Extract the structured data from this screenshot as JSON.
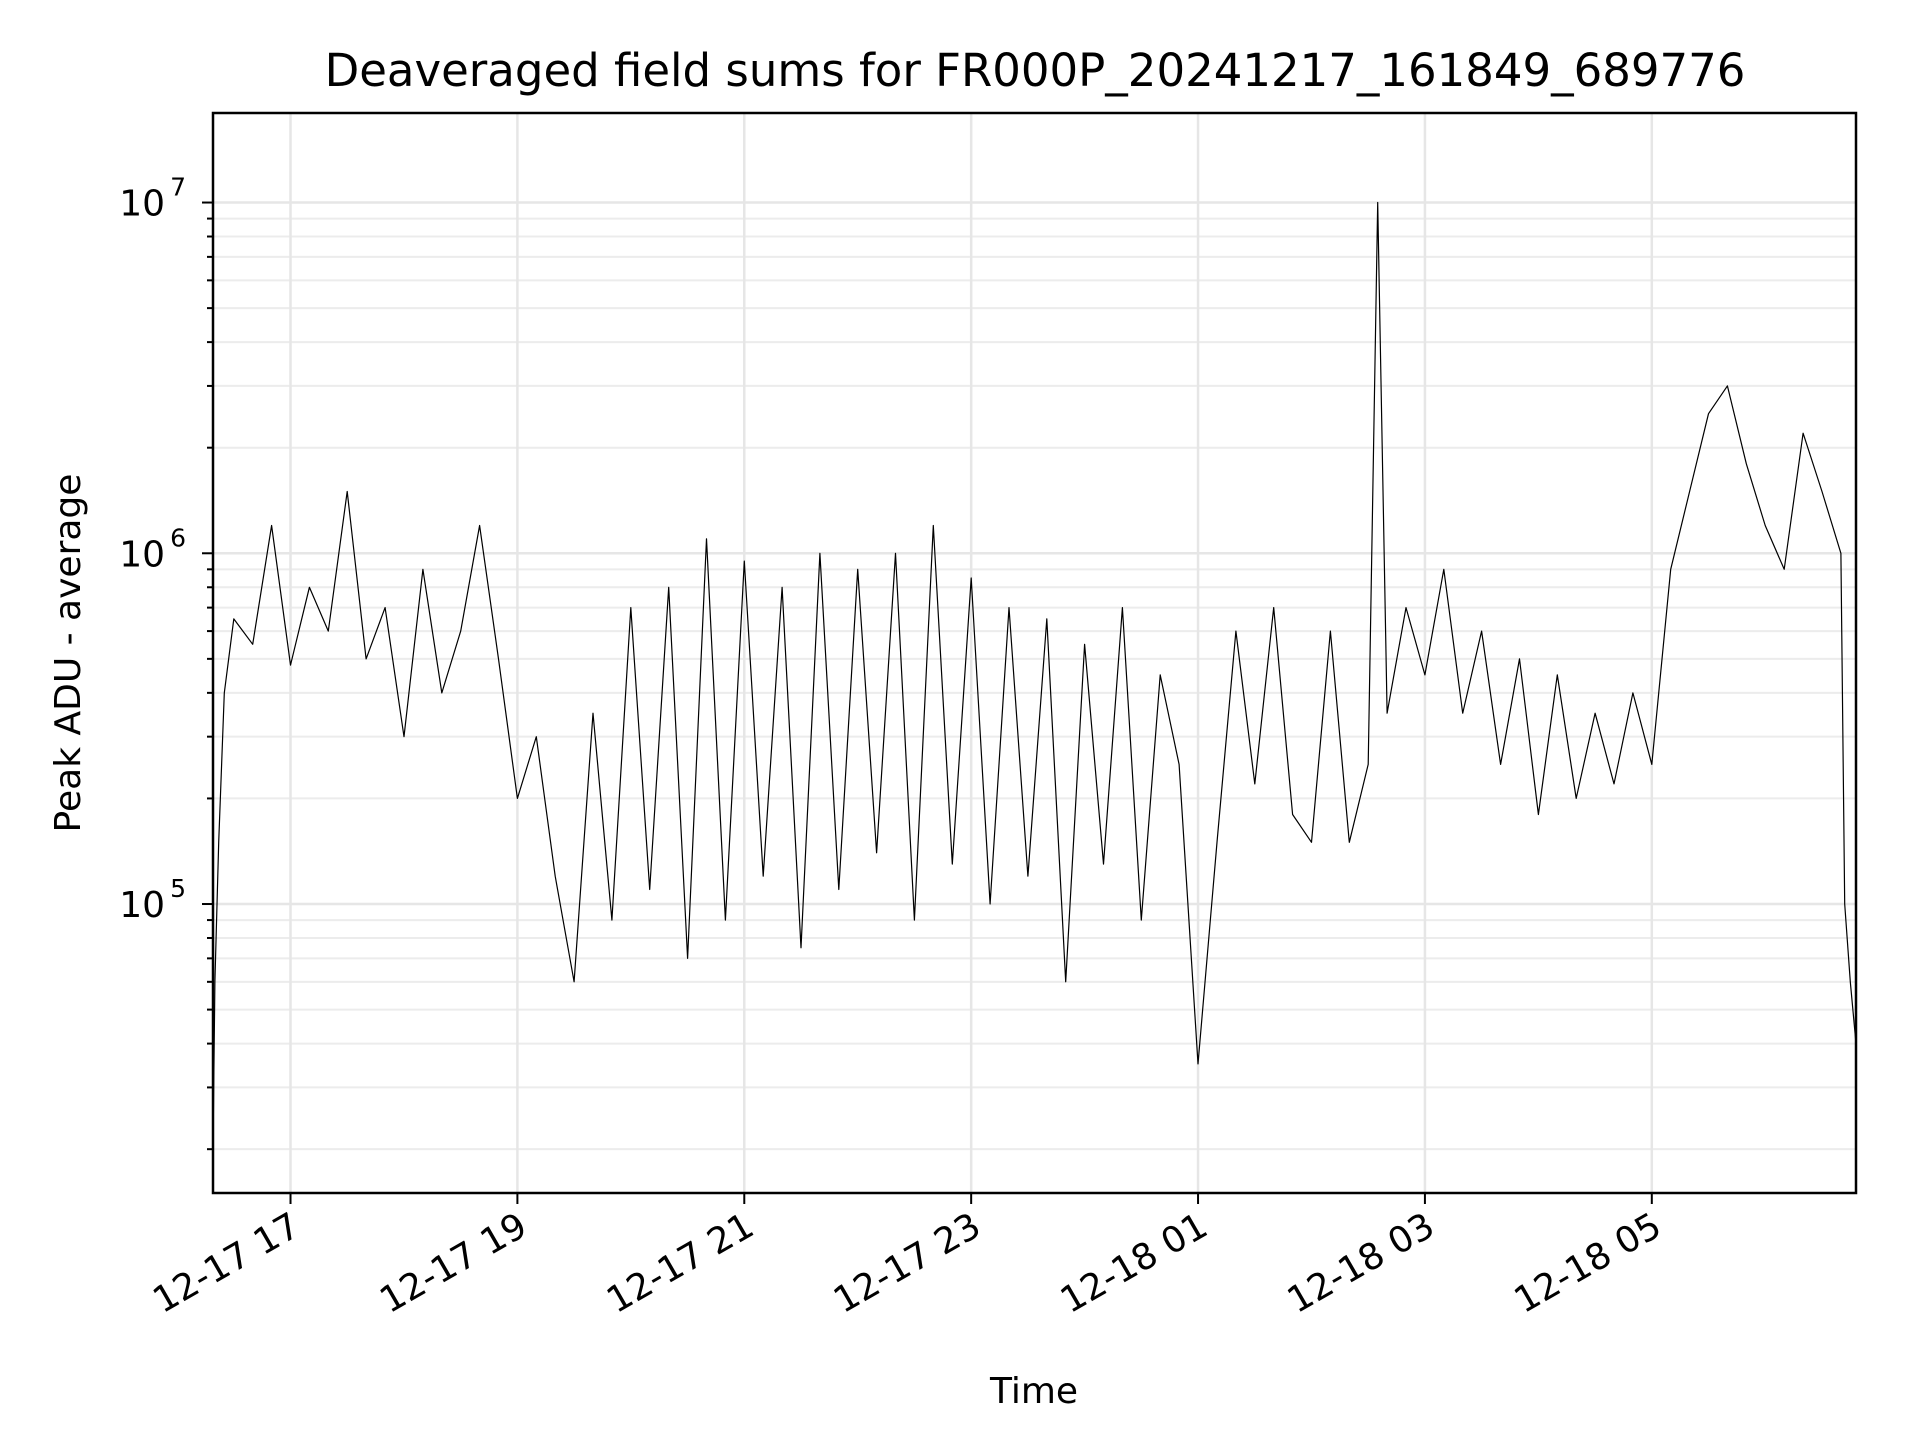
{
  "chart_data": {
    "type": "line",
    "title": "Deaveraged field sums for FR000P_20241217_161849_689776",
    "xlabel": "Time",
    "ylabel": "Peak ADU - average",
    "yscale": "log",
    "ylim": [
      15000,
      18000000
    ],
    "xlim": [
      "2024-12-17 16:19",
      "2024-12-18 06:48"
    ],
    "grid": true,
    "x_ticks": [
      {
        "value": "2024-12-17 17:00",
        "label": "12-17 17"
      },
      {
        "value": "2024-12-17 19:00",
        "label": "12-17 19"
      },
      {
        "value": "2024-12-17 21:00",
        "label": "12-17 21"
      },
      {
        "value": "2024-12-17 23:00",
        "label": "12-17 23"
      },
      {
        "value": "2024-12-18 01:00",
        "label": "12-18 01"
      },
      {
        "value": "2024-12-18 03:00",
        "label": "12-18 03"
      },
      {
        "value": "2024-12-18 05:00",
        "label": "12-18 05"
      }
    ],
    "y_ticks": [
      {
        "value": 100000,
        "base": "10",
        "exp": "5"
      },
      {
        "value": 1000000,
        "base": "10",
        "exp": "6"
      },
      {
        "value": 10000000,
        "base": "10",
        "exp": "7"
      }
    ],
    "series": [
      {
        "color": "#000000",
        "x": [
          "2024-12-17 16:19",
          "2024-12-17 16:20",
          "2024-12-17 16:22",
          "2024-12-17 16:25",
          "2024-12-17 16:30",
          "2024-12-17 16:40",
          "2024-12-17 16:50",
          "2024-12-17 17:00",
          "2024-12-17 17:10",
          "2024-12-17 17:20",
          "2024-12-17 17:30",
          "2024-12-17 17:40",
          "2024-12-17 17:50",
          "2024-12-17 18:00",
          "2024-12-17 18:10",
          "2024-12-17 18:20",
          "2024-12-17 18:30",
          "2024-12-17 18:40",
          "2024-12-17 18:50",
          "2024-12-17 19:00",
          "2024-12-17 19:10",
          "2024-12-17 19:20",
          "2024-12-17 19:30",
          "2024-12-17 19:40",
          "2024-12-17 19:50",
          "2024-12-17 20:00",
          "2024-12-17 20:10",
          "2024-12-17 20:20",
          "2024-12-17 20:30",
          "2024-12-17 20:40",
          "2024-12-17 20:50",
          "2024-12-17 21:00",
          "2024-12-17 21:10",
          "2024-12-17 21:20",
          "2024-12-17 21:30",
          "2024-12-17 21:40",
          "2024-12-17 21:50",
          "2024-12-17 22:00",
          "2024-12-17 22:10",
          "2024-12-17 22:20",
          "2024-12-17 22:30",
          "2024-12-17 22:40",
          "2024-12-17 22:50",
          "2024-12-17 23:00",
          "2024-12-17 23:10",
          "2024-12-17 23:20",
          "2024-12-17 23:30",
          "2024-12-17 23:40",
          "2024-12-17 23:50",
          "2024-12-18 00:00",
          "2024-12-18 00:10",
          "2024-12-18 00:20",
          "2024-12-18 00:30",
          "2024-12-18 00:40",
          "2024-12-18 00:50",
          "2024-12-18 01:00",
          "2024-12-18 01:10",
          "2024-12-18 01:20",
          "2024-12-18 01:30",
          "2024-12-18 01:40",
          "2024-12-18 01:50",
          "2024-12-18 02:00",
          "2024-12-18 02:10",
          "2024-12-18 02:20",
          "2024-12-18 02:30",
          "2024-12-18 02:35",
          "2024-12-18 02:40",
          "2024-12-18 02:50",
          "2024-12-18 03:00",
          "2024-12-18 03:10",
          "2024-12-18 03:20",
          "2024-12-18 03:30",
          "2024-12-18 03:40",
          "2024-12-18 03:50",
          "2024-12-18 04:00",
          "2024-12-18 04:10",
          "2024-12-18 04:20",
          "2024-12-18 04:30",
          "2024-12-18 04:40",
          "2024-12-18 04:50",
          "2024-12-18 05:00",
          "2024-12-18 05:10",
          "2024-12-18 05:20",
          "2024-12-18 05:30",
          "2024-12-18 05:40",
          "2024-12-18 05:50",
          "2024-12-18 06:00",
          "2024-12-18 06:10",
          "2024-12-18 06:20",
          "2024-12-18 06:30",
          "2024-12-18 06:40",
          "2024-12-18 06:42",
          "2024-12-18 06:45",
          "2024-12-18 06:48"
        ],
        "y": [
          20000,
          60000,
          150000,
          400000,
          650000,
          550000,
          1200000,
          480000,
          800000,
          600000,
          1500000,
          500000,
          700000,
          300000,
          900000,
          400000,
          600000,
          1200000,
          500000,
          200000,
          300000,
          120000,
          60000,
          350000,
          90000,
          700000,
          110000,
          800000,
          70000,
          1100000,
          90000,
          950000,
          120000,
          800000,
          75000,
          1000000,
          110000,
          900000,
          140000,
          1000000,
          90000,
          1200000,
          130000,
          850000,
          100000,
          700000,
          120000,
          650000,
          60000,
          550000,
          130000,
          700000,
          90000,
          450000,
          250000,
          35000,
          150000,
          600000,
          220000,
          700000,
          180000,
          150000,
          600000,
          150000,
          250000,
          10000000,
          350000,
          700000,
          450000,
          900000,
          350000,
          600000,
          250000,
          500000,
          180000,
          450000,
          200000,
          350000,
          220000,
          400000,
          250000,
          900000,
          1500000,
          2500000,
          3000000,
          1800000,
          1200000,
          900000,
          2200000,
          1500000,
          1000000,
          100000,
          60000,
          40000
        ]
      }
    ]
  }
}
